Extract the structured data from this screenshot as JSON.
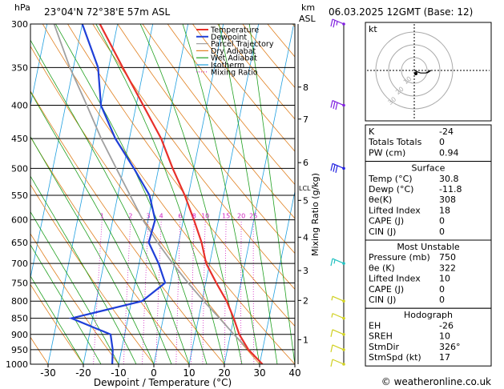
{
  "header": {
    "left_unit": "hPa",
    "location": "23°04'N  72°38'E  57m  ASL",
    "right_unit_km": "km",
    "right_unit_asl": "ASL",
    "datetime": "06.03.2025  12GMT  (Base: 12)"
  },
  "footer": {
    "copyright": "© weatheronline.co.uk"
  },
  "colors": {
    "temperature": "#e8302a",
    "dewpoint": "#1f3fd8",
    "parcel": "#a0a0a0",
    "dry_adiabat": "#e08020",
    "wet_adiabat": "#20a020",
    "isotherm": "#20a0e0",
    "mixing_ratio": "#d020c0",
    "wind_barb_upper": "#8020e0",
    "wind_barb_mid": "#2020e0",
    "wind_barb_teal": "#20c0c0",
    "wind_barb_low": "#d0d020"
  },
  "chart_data": {
    "type": "line",
    "title": "",
    "xlabel": "Dewpoint / Temperature (°C)",
    "ylabel": "hPa",
    "y2label": "Mixing Ratio (g/kg)",
    "xlim": [
      -35,
      40
    ],
    "ylim": [
      1000,
      300
    ],
    "y_scale": "log",
    "grid": true,
    "x_ticks": [
      "-30",
      "-20",
      "-10",
      "0",
      "10",
      "20",
      "30",
      "40"
    ],
    "x_tick_values": [
      -30,
      -20,
      -10,
      0,
      10,
      20,
      30,
      40
    ],
    "pressure_levels": [
      300,
      350,
      400,
      450,
      500,
      550,
      600,
      650,
      700,
      750,
      800,
      850,
      900,
      950,
      1000
    ],
    "pressure_tick_labels": [
      "300",
      "350",
      "400",
      "450",
      "500",
      "550",
      "600",
      "650",
      "700",
      "750",
      "800",
      "850",
      "900",
      "950",
      "1000"
    ],
    "km_levels": [
      {
        "km": "8",
        "p": 375
      },
      {
        "km": "7",
        "p": 420
      },
      {
        "km": "6",
        "p": 490
      },
      {
        "km": "5",
        "p": 560
      },
      {
        "km": "4",
        "p": 638
      },
      {
        "km": "3",
        "p": 718
      },
      {
        "km": "2",
        "p": 798
      },
      {
        "km": "1",
        "p": 917
      }
    ],
    "lcl_label": "LCL",
    "lcl_p": 535,
    "mixing_ratio_lines": [
      {
        "label": "1",
        "g": 1
      },
      {
        "label": "2",
        "g": 2
      },
      {
        "label": "3",
        "g": 3
      },
      {
        "label": "4",
        "g": 4
      },
      {
        "label": "6",
        "g": 6
      },
      {
        "label": "8",
        "g": 8
      },
      {
        "label": "10",
        "g": 10
      },
      {
        "label": "15",
        "g": 15
      },
      {
        "label": "20",
        "g": 20
      },
      {
        "label": "25",
        "g": 25
      }
    ],
    "legend": {
      "position": "top-center",
      "entries": [
        "Temperature",
        "Dewpoint",
        "Parcel Trajectory",
        "Dry Adiabat",
        "Wet Adiabat",
        "Isotherm",
        "Mixing Ratio"
      ]
    },
    "series": [
      {
        "name": "Temperature",
        "points": [
          [
            1000,
            30.8
          ],
          [
            950,
            26
          ],
          [
            900,
            22.5
          ],
          [
            850,
            20
          ],
          [
            800,
            17
          ],
          [
            750,
            13
          ],
          [
            700,
            9
          ],
          [
            650,
            6.5
          ],
          [
            600,
            3
          ],
          [
            550,
            -1
          ],
          [
            500,
            -6
          ],
          [
            450,
            -11
          ],
          [
            400,
            -18
          ],
          [
            350,
            -26
          ],
          [
            300,
            -35
          ]
        ]
      },
      {
        "name": "Dewpoint",
        "points": [
          [
            1000,
            -11.8
          ],
          [
            950,
            -12.5
          ],
          [
            900,
            -14
          ],
          [
            850,
            -26
          ],
          [
            800,
            -7
          ],
          [
            750,
            -1.5
          ],
          [
            700,
            -4.5
          ],
          [
            650,
            -8.5
          ],
          [
            600,
            -8
          ],
          [
            550,
            -11
          ],
          [
            500,
            -17
          ],
          [
            450,
            -24
          ],
          [
            400,
            -30
          ],
          [
            350,
            -33
          ],
          [
            300,
            -40
          ]
        ]
      },
      {
        "name": "Parcel Trajectory",
        "points": [
          [
            1000,
            30.8
          ],
          [
            950,
            26
          ],
          [
            900,
            21
          ],
          [
            850,
            16
          ],
          [
            800,
            10.5
          ],
          [
            750,
            5
          ],
          [
            700,
            -0.5
          ],
          [
            650,
            -6
          ],
          [
            600,
            -11.5
          ],
          [
            550,
            -16.5
          ],
          [
            500,
            -22
          ],
          [
            450,
            -28
          ],
          [
            400,
            -34
          ],
          [
            350,
            -41
          ],
          [
            300,
            -48
          ]
        ]
      }
    ],
    "wind_barbs": [
      {
        "p": 300,
        "color_key": "wind_barb_upper",
        "flags": 0,
        "full": 2,
        "half": 1
      },
      {
        "p": 400,
        "color_key": "wind_barb_upper",
        "flags": 0,
        "full": 3,
        "half": 0
      },
      {
        "p": 500,
        "color_key": "wind_barb_mid",
        "flags": 0,
        "full": 3,
        "half": 0
      },
      {
        "p": 700,
        "color_key": "wind_barb_teal",
        "flags": 0,
        "full": 1,
        "half": 1
      },
      {
        "p": 800,
        "color_key": "wind_barb_low",
        "flags": 0,
        "full": 0,
        "half": 1
      },
      {
        "p": 850,
        "color_key": "wind_barb_low",
        "flags": 0,
        "full": 0,
        "half": 1
      },
      {
        "p": 900,
        "color_key": "wind_barb_low",
        "flags": 0,
        "full": 1,
        "half": 0
      },
      {
        "p": 950,
        "color_key": "wind_barb_low",
        "flags": 0,
        "full": 1,
        "half": 0
      },
      {
        "p": 1000,
        "color_key": "wind_barb_low",
        "flags": 0,
        "full": 1,
        "half": 0
      }
    ]
  },
  "hodograph": {
    "label": "kt",
    "ring_labels": [
      "10",
      "20",
      "30"
    ],
    "points_kt": [
      [
        2,
        -1
      ],
      [
        5,
        -2
      ],
      [
        9,
        -2
      ],
      [
        11,
        -1
      ],
      [
        13,
        0
      ],
      [
        10,
        -2
      ]
    ]
  },
  "indices": [
    {
      "label": "K",
      "value": "-24"
    },
    {
      "label": "Totals Totals",
      "value": "0"
    },
    {
      "label": "PW (cm)",
      "value": "0.94"
    }
  ],
  "surface": {
    "title": "Surface",
    "rows": [
      {
        "label": "Temp (°C)",
        "value": "30.8"
      },
      {
        "label": "Dewp (°C)",
        "value": "-11.8"
      },
      {
        "label": "θe(K)",
        "value": "308"
      },
      {
        "label": "Lifted Index",
        "value": "18"
      },
      {
        "label": "CAPE (J)",
        "value": "0"
      },
      {
        "label": "CIN (J)",
        "value": "0"
      }
    ]
  },
  "most_unstable": {
    "title": "Most Unstable",
    "rows": [
      {
        "label": "Pressure (mb)",
        "value": "750"
      },
      {
        "label": "θe (K)",
        "value": "322"
      },
      {
        "label": "Lifted Index",
        "value": "10"
      },
      {
        "label": "CAPE (J)",
        "value": "0"
      },
      {
        "label": "CIN (J)",
        "value": "0"
      }
    ]
  },
  "hodograph_table": {
    "title": "Hodograph",
    "rows": [
      {
        "label": "EH",
        "value": "-26"
      },
      {
        "label": "SREH",
        "value": "10"
      },
      {
        "label": "StmDir",
        "value": "326°"
      },
      {
        "label": "StmSpd (kt)",
        "value": "17"
      }
    ]
  }
}
